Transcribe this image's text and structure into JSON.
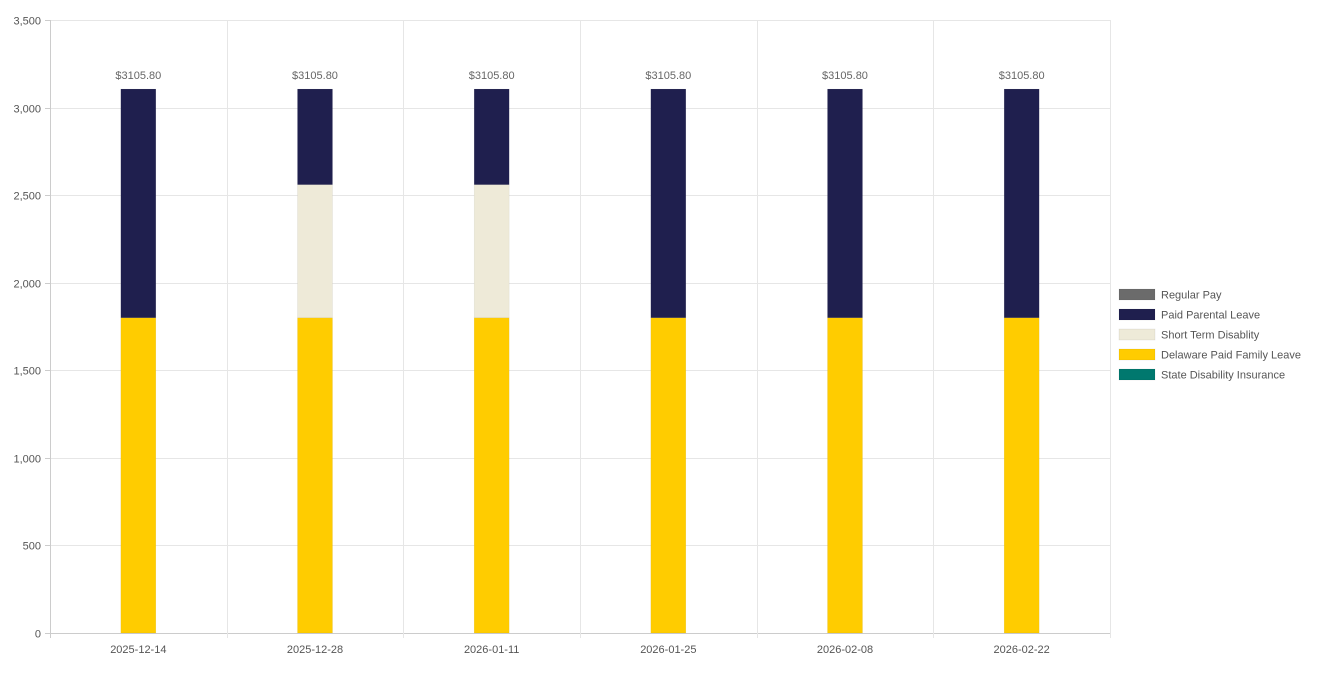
{
  "chart_data": {
    "type": "bar",
    "stacked": true,
    "categories": [
      "2025-12-14",
      "2025-12-28",
      "2026-01-11",
      "2026-01-25",
      "2026-02-08",
      "2026-02-22"
    ],
    "series": [
      {
        "name": "Regular Pay",
        "color": "#6b6b6b",
        "values": [
          0,
          0,
          0,
          0,
          0,
          0
        ]
      },
      {
        "name": "Paid Parental Leave",
        "color": "#1f1f4e",
        "values": [
          1305.8,
          545.8,
          545.8,
          1305.8,
          1305.8,
          1305.8
        ]
      },
      {
        "name": "Short Term Disablity",
        "color": "#eeead8",
        "values": [
          0,
          760,
          760,
          0,
          0,
          0
        ]
      },
      {
        "name": "Delaware Paid Family Leave",
        "color": "#ffcc00",
        "values": [
          1800,
          1800,
          1800,
          1800,
          1800,
          1800
        ]
      },
      {
        "name": "State Disability Insurance",
        "color": "#00786e",
        "values": [
          0,
          0,
          0,
          0,
          0,
          0
        ]
      }
    ],
    "totals": [
      "$3105.80",
      "$3105.80",
      "$3105.80",
      "$3105.80",
      "$3105.80",
      "$3105.80"
    ],
    "yticks": [
      0,
      500,
      1000,
      1500,
      2000,
      2500,
      3000,
      3500
    ],
    "ytick_labels": [
      "0",
      "500",
      "1,000",
      "1,500",
      "2,000",
      "2,500",
      "3,000",
      "3,500"
    ],
    "ylim": [
      0,
      3500
    ],
    "grid": true,
    "legend_position": "right",
    "title": "",
    "xlabel": "",
    "ylabel": ""
  }
}
